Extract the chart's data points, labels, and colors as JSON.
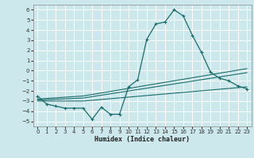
{
  "xlabel": "Humidex (Indice chaleur)",
  "xlim": [
    -0.5,
    23.5
  ],
  "ylim": [
    -5.5,
    6.5
  ],
  "yticks": [
    -5,
    -4,
    -3,
    -2,
    -1,
    0,
    1,
    2,
    3,
    4,
    5,
    6
  ],
  "xticks": [
    0,
    1,
    2,
    3,
    4,
    5,
    6,
    7,
    8,
    9,
    10,
    11,
    12,
    13,
    14,
    15,
    16,
    17,
    18,
    19,
    20,
    21,
    22,
    23
  ],
  "background_color": "#cce8ec",
  "grid_color": "#ffffff",
  "line_color": "#1a6b6b",
  "line1_x": [
    0,
    1,
    2,
    3,
    4,
    5,
    6,
    7,
    8,
    9,
    10,
    11,
    12,
    13,
    14,
    15,
    16,
    17,
    18,
    19,
    20,
    21,
    22,
    23
  ],
  "line1_y": [
    -2.5,
    -3.3,
    -3.5,
    -3.7,
    -3.7,
    -3.7,
    -4.8,
    -3.6,
    -4.3,
    -4.3,
    -1.6,
    -0.9,
    3.1,
    4.6,
    4.8,
    6.0,
    5.4,
    3.5,
    1.8,
    -0.15,
    -0.75,
    -1.0,
    -1.5,
    -1.8
  ],
  "line2_x": [
    0,
    5,
    23
  ],
  "line2_y": [
    -2.8,
    -2.5,
    0.2
  ],
  "line3_x": [
    0,
    5,
    23
  ],
  "line3_y": [
    -2.9,
    -2.7,
    -0.2
  ],
  "line4_x": [
    0,
    5,
    23
  ],
  "line4_y": [
    -3.0,
    -3.0,
    -1.6
  ]
}
